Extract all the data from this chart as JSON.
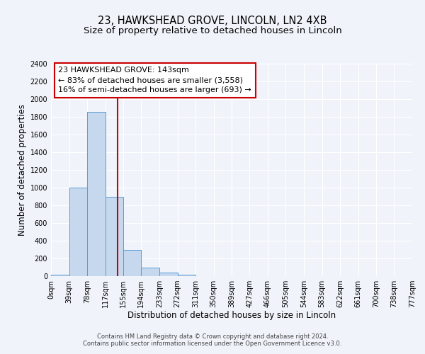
{
  "title": "23, HAWKSHEAD GROVE, LINCOLN, LN2 4XB",
  "subtitle": "Size of property relative to detached houses in Lincoln",
  "xlabel": "Distribution of detached houses by size in Lincoln",
  "ylabel": "Number of detached properties",
  "bin_edges": [
    0,
    39,
    78,
    117,
    155,
    194,
    233,
    272,
    311,
    350,
    389,
    427,
    466,
    505,
    544,
    583,
    622,
    661,
    700,
    738,
    777
  ],
  "bin_counts": [
    20,
    1000,
    1860,
    900,
    300,
    100,
    40,
    20,
    0,
    0,
    0,
    0,
    0,
    0,
    0,
    0,
    0,
    0,
    0,
    0
  ],
  "bar_color": "#c5d8ed",
  "bar_edge_color": "#5b9bd5",
  "vline_x": 143,
  "vline_color": "#cc0000",
  "ylim": [
    0,
    2400
  ],
  "yticks": [
    0,
    200,
    400,
    600,
    800,
    1000,
    1200,
    1400,
    1600,
    1800,
    2000,
    2200,
    2400
  ],
  "xtick_labels": [
    "0sqm",
    "39sqm",
    "78sqm",
    "117sqm",
    "155sqm",
    "194sqm",
    "233sqm",
    "272sqm",
    "311sqm",
    "350sqm",
    "389sqm",
    "427sqm",
    "466sqm",
    "505sqm",
    "544sqm",
    "583sqm",
    "622sqm",
    "661sqm",
    "700sqm",
    "738sqm",
    "777sqm"
  ],
  "annotation_box_text": "23 HAWKSHEAD GROVE: 143sqm\n← 83% of detached houses are smaller (3,558)\n16% of semi-detached houses are larger (693) →",
  "footer_line1": "Contains HM Land Registry data © Crown copyright and database right 2024.",
  "footer_line2": "Contains public sector information licensed under the Open Government Licence v3.0.",
  "fig_bg_color": "#f0f4fa",
  "plot_bg_color": "#f0f4fa",
  "grid_color": "#ffffff",
  "title_fontsize": 10.5,
  "subtitle_fontsize": 9.5,
  "axis_label_fontsize": 8.5,
  "tick_fontsize": 7,
  "annotation_fontsize": 8,
  "footer_fontsize": 6
}
